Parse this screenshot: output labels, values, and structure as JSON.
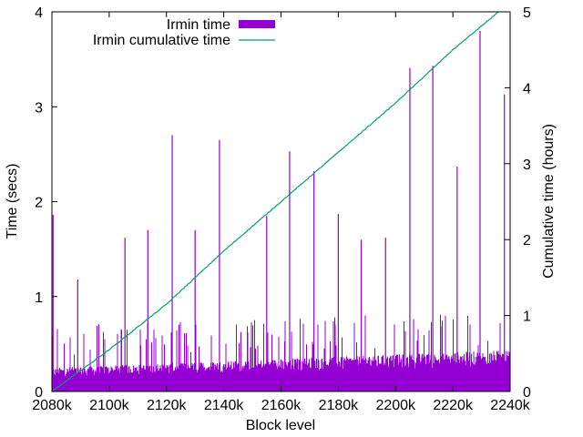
{
  "chart_data": {
    "type": "bar",
    "title": "",
    "xlabel": "Block level",
    "ylabel": "Time (secs)",
    "y2label": "Cumulative time (hours)",
    "xlim": [
      2080000,
      2240000
    ],
    "ylim": [
      0,
      4
    ],
    "y2lim": [
      0,
      5
    ],
    "xticks": [
      2080000,
      2100000,
      2120000,
      2140000,
      2160000,
      2180000,
      2200000,
      2220000,
      2240000
    ],
    "xtick_labels": [
      "2080k",
      "2100k",
      "2120k",
      "2140k",
      "2160k",
      "2180k",
      "2200k",
      "2220k",
      "2240k"
    ],
    "yticks": [
      0,
      1,
      2,
      3,
      4
    ],
    "ytick_labels": [
      "0",
      "1",
      "2",
      "3",
      "4"
    ],
    "y2ticks": [
      0,
      1,
      2,
      3,
      4,
      5
    ],
    "y2tick_labels": [
      "0",
      "1",
      "2",
      "3",
      "4",
      "5"
    ],
    "legend_position": "top-left",
    "grid": false,
    "series": [
      {
        "name": "Irmin time",
        "kind": "impulse",
        "axis": "y",
        "color": "#9400d3",
        "baseline_band": [
          0.2,
          0.35
        ],
        "spikes": [
          {
            "x": 2080400,
            "y": 1.86
          },
          {
            "x": 2089000,
            "y": 1.18
          },
          {
            "x": 2105500,
            "y": 1.62
          },
          {
            "x": 2113500,
            "y": 1.7
          },
          {
            "x": 2122000,
            "y": 2.7
          },
          {
            "x": 2130000,
            "y": 1.7
          },
          {
            "x": 2138500,
            "y": 2.65
          },
          {
            "x": 2155000,
            "y": 1.85
          },
          {
            "x": 2163000,
            "y": 2.53
          },
          {
            "x": 2171500,
            "y": 2.32
          },
          {
            "x": 2180000,
            "y": 1.87
          },
          {
            "x": 2188000,
            "y": 1.6
          },
          {
            "x": 2196500,
            "y": 1.62
          },
          {
            "x": 2205000,
            "y": 3.41
          },
          {
            "x": 2213000,
            "y": 3.43
          },
          {
            "x": 2221500,
            "y": 2.37
          },
          {
            "x": 2229500,
            "y": 3.8
          },
          {
            "x": 2238000,
            "y": 3.13
          }
        ]
      },
      {
        "name": "Irmin cumulative time",
        "kind": "line",
        "axis": "y2",
        "color": "#009e73",
        "x": [
          2080000,
          2100000,
          2120000,
          2140000,
          2160000,
          2180000,
          2200000,
          2220000,
          2236000
        ],
        "y": [
          0,
          0.55,
          1.15,
          1.85,
          2.5,
          3.15,
          3.8,
          4.5,
          5.0
        ]
      }
    ]
  }
}
